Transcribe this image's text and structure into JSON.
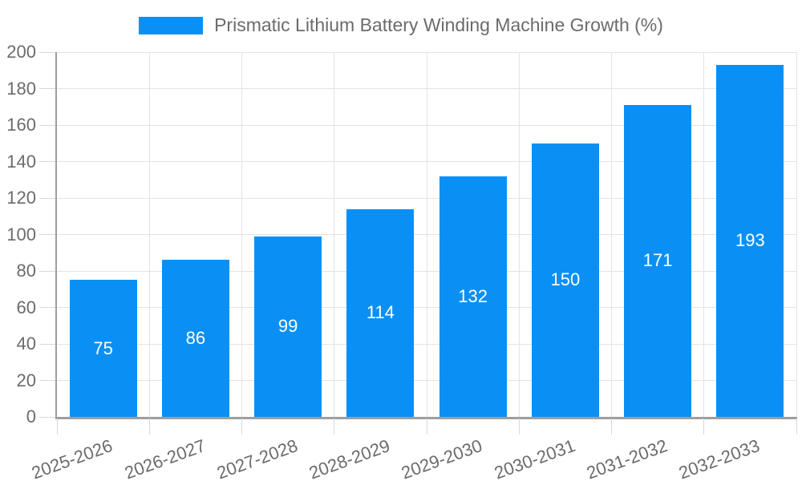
{
  "legend": {
    "label": "Prismatic Lithium Battery Winding Machine Growth (%)"
  },
  "chart_data": {
    "type": "bar",
    "title": "Prismatic Lithium Battery Winding Machine Growth (%)",
    "categories": [
      "2025-2026",
      "2026-2027",
      "2027-2028",
      "2028-2029",
      "2029-2030",
      "2030-2031",
      "2031-2032",
      "2032-2033"
    ],
    "values": [
      75,
      86,
      99,
      114,
      132,
      150,
      171,
      193
    ],
    "value_labels": [
      "75",
      "86",
      "99",
      "114",
      "132",
      "150",
      "171",
      "193"
    ],
    "xlabel": "",
    "ylabel": "",
    "ylim": [
      0,
      200
    ],
    "ytick_step": 20,
    "y_tick_labels": [
      "0",
      "20",
      "40",
      "60",
      "80",
      "100",
      "120",
      "140",
      "160",
      "180",
      "200"
    ],
    "grid": true,
    "legend_position": "top",
    "x_label_rotation_deg": -20,
    "colors": {
      "bar": "#0a90f5",
      "value_label": "#ffffff",
      "gridline": "#e3e3e3",
      "tick": "#d8d8d8",
      "axis_line": "#9e9e9e",
      "axis_label": "#6b6b6b",
      "legend_text": "#6b6b6b",
      "background": "#ffffff"
    }
  }
}
